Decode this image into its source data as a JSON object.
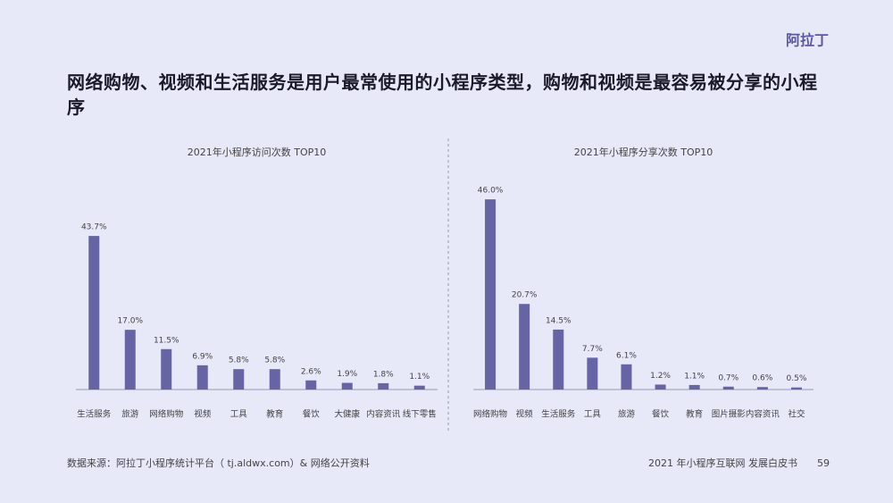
{
  "logo": "阿拉丁",
  "title": "网络购物、视频和生活服务是用户最常使用的小程序类型，购物和视频是最容易被分享的小程序",
  "source": "数据来源：阿拉丁小程序统计平台（ tj.aldwx.com）& 网络公开资料",
  "footer": "2021 年小程序互联网 发展白皮书",
  "page_number": "59",
  "chart_data": [
    {
      "type": "bar",
      "title": "2021年小程序访问次数 TOP10",
      "categories": [
        "生活服务",
        "旅游",
        "网络购物",
        "视频",
        "工具",
        "教育",
        "餐饮",
        "大健康",
        "内容资讯",
        "线下零售"
      ],
      "values": [
        43.7,
        17.0,
        11.5,
        6.9,
        5.8,
        5.8,
        2.6,
        1.9,
        1.8,
        1.1
      ],
      "value_labels": [
        "43.7%",
        "17.0%",
        "11.5%",
        "6.9%",
        "5.8%",
        "5.8%",
        "2.6%",
        "1.9%",
        "1.8%",
        "1.1%"
      ],
      "color": "#6764a6",
      "ylim": [
        0,
        60
      ]
    },
    {
      "type": "bar",
      "title": "2021年小程序分享次数 TOP10",
      "categories": [
        "网络购物",
        "视频",
        "生活服务",
        "工具",
        "旅游",
        "餐饮",
        "教育",
        "图片摄影",
        "内容资讯",
        "社交"
      ],
      "values": [
        46.0,
        20.7,
        14.5,
        7.7,
        6.1,
        1.2,
        1.1,
        0.7,
        0.6,
        0.5
      ],
      "value_labels": [
        "46.0%",
        "20.7%",
        "14.5%",
        "7.7%",
        "6.1%",
        "1.2%",
        "1.1%",
        "0.7%",
        "0.6%",
        "0.5%"
      ],
      "color": "#6764a6",
      "ylim": [
        0,
        51
      ]
    }
  ]
}
